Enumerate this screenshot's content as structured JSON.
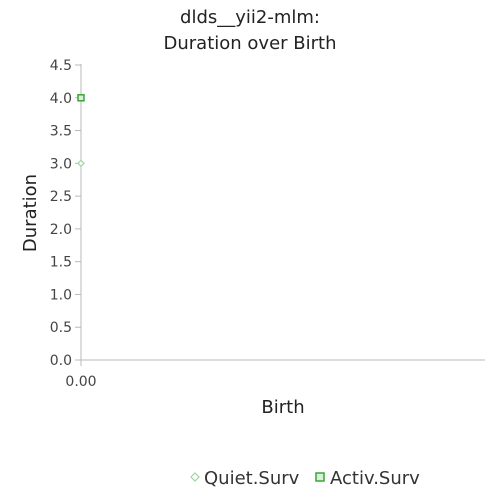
{
  "chart_data": {
    "type": "scatter",
    "title_lines": [
      "dlds__yii2-mlm:",
      "Duration over Birth"
    ],
    "xlabel": "Birth",
    "ylabel": "Duration",
    "xlim": [
      0,
      1
    ],
    "ylim": [
      0,
      4.5
    ],
    "x_ticks": [
      0
    ],
    "x_tick_labels": [
      "0.00"
    ],
    "y_ticks": [
      0,
      0.5,
      1,
      1.5,
      2,
      2.5,
      3,
      3.5,
      4,
      4.5
    ],
    "y_tick_labels": [
      "0.0",
      "0.5",
      "1.0",
      "1.5",
      "2.0",
      "2.5",
      "3.0",
      "3.5",
      "4.0",
      "4.5"
    ],
    "grid": false,
    "legend_position": "bottom",
    "series": [
      {
        "name": "Quiet.Surv",
        "marker": "diamond",
        "color": "#9ed49e",
        "points": [
          {
            "x": 0,
            "y": 3
          }
        ]
      },
      {
        "name": "Activ.Surv",
        "marker": "square",
        "color": "#3aa63a",
        "points": [
          {
            "x": 0,
            "y": 4
          }
        ]
      }
    ]
  }
}
